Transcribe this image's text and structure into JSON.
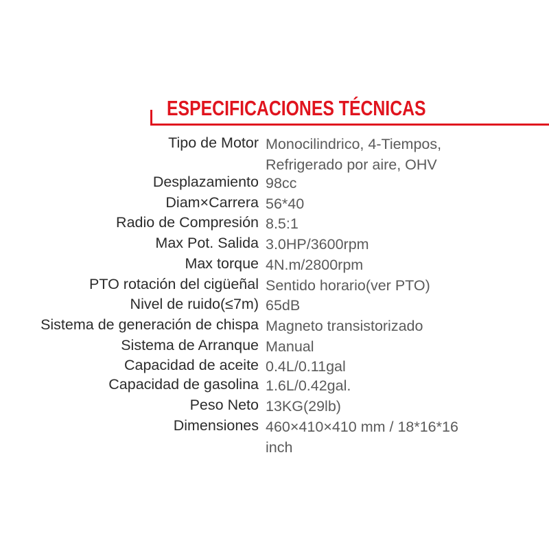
{
  "title": "ESPECIFICACIONES TÉCNICAS",
  "accent_color": "#e0141e",
  "specs": [
    {
      "label": "Tipo de Motor",
      "value": "Monocilindrico, 4-Tiempos,",
      "value2": "Refrigerado por aire, OHV"
    },
    {
      "label": "Desplazamiento",
      "value": "98cc"
    },
    {
      "label": "Diam×Carrera",
      "value": "56*40"
    },
    {
      "label": "Radio de Compresión",
      "value": "8.5:1"
    },
    {
      "label": "Max Pot. Salida",
      "value": "3.0HP/3600rpm"
    },
    {
      "label": "Max torque",
      "value": "4N.m/2800rpm"
    },
    {
      "label": "PTO rotación del cigüeñal",
      "value": "Sentido horario(ver PTO)"
    },
    {
      "label": "Nivel de ruido(≤7m)",
      "value": "65dB"
    },
    {
      "label": "Sistema de generación de chispa",
      "value": "Magneto transistorizado"
    },
    {
      "label": "Sistema de Arranque",
      "value": "Manual"
    },
    {
      "label": "Capacidad de aceite",
      "value": "0.4L/0.11gal"
    },
    {
      "label": "Capacidad de gasolina",
      "value": "1.6L/0.42gal."
    },
    {
      "label": "Peso Neto",
      "value": "13KG(29lb)"
    },
    {
      "label": "Dimensiones",
      "value": "460×410×410 mm / 18*16*16",
      "value2": "inch"
    }
  ]
}
